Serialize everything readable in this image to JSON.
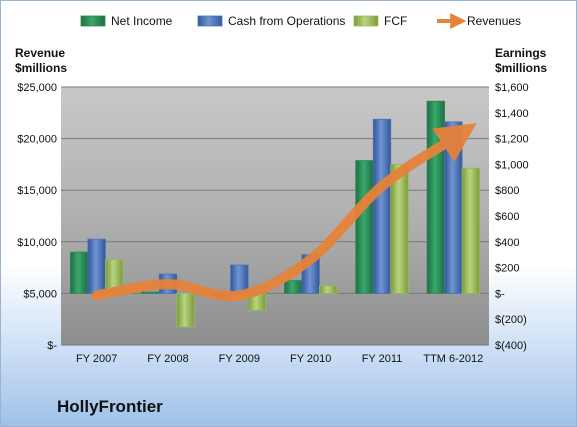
{
  "company": "HollyFrontier",
  "colors": {
    "net_income": "#2a8a57",
    "cash_from_operations": "#4a73b6",
    "fcf": "#9bbb59",
    "revenues": "#e6823a"
  },
  "chart_data": {
    "type": "bar",
    "categories": [
      "FY 2007",
      "FY 2008",
      "FY 2009",
      "FY 2010",
      "FY 2011",
      "TTM 6-2012"
    ],
    "left_axis": {
      "title_line1": "Revenue",
      "title_line2": "$millions",
      "ylim": [
        0,
        25000
      ],
      "ticks": [
        "$-",
        "$5,000",
        "$10,000",
        "$15,000",
        "$20,000",
        "$25,000"
      ],
      "tick_values": [
        0,
        5000,
        10000,
        15000,
        20000,
        25000
      ]
    },
    "right_axis": {
      "title_line1": "Earnings",
      "title_line2": "$millions",
      "ylim": [
        -400,
        1600
      ],
      "ticks": [
        "$(400)",
        "$(200)",
        "$-",
        "$200",
        "$400",
        "$600",
        "$800",
        "$1,000",
        "$1,200",
        "$1,400",
        "$1,600"
      ],
      "tick_values": [
        -400,
        -200,
        0,
        200,
        400,
        600,
        800,
        1000,
        1200,
        1400,
        1600
      ]
    },
    "series": [
      {
        "name": "Net Income",
        "axis": "right",
        "kind": "bar",
        "values": [
          320,
          10,
          -20,
          100,
          1030,
          1490
        ]
      },
      {
        "name": "Cash from Operations",
        "axis": "right",
        "kind": "bar",
        "values": [
          420,
          150,
          220,
          300,
          1350,
          1330
        ]
      },
      {
        "name": "FCF",
        "axis": "right",
        "kind": "bar",
        "values": [
          260,
          -260,
          -130,
          60,
          1000,
          970
        ]
      },
      {
        "name": "Revenues",
        "axis": "left",
        "kind": "line",
        "values": [
          4800,
          5900,
          4800,
          8300,
          15400,
          20000
        ]
      }
    ],
    "legend_position": "top",
    "grid": true
  }
}
